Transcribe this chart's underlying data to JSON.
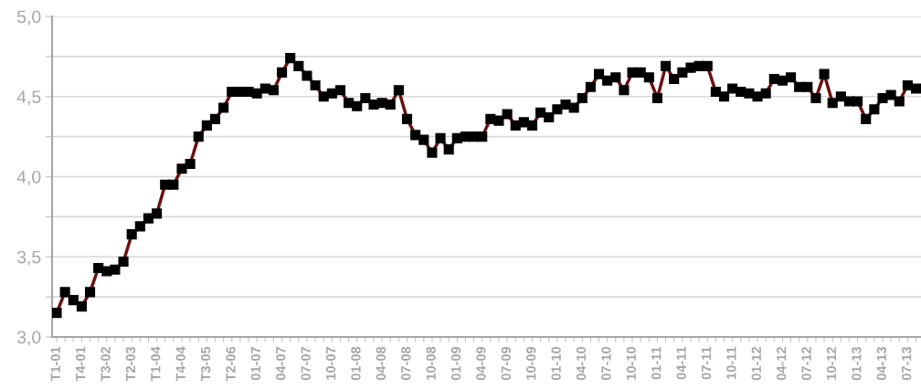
{
  "chart_data": {
    "type": "line",
    "categories": [
      "T1-01",
      null,
      null,
      "T4-01",
      null,
      null,
      "T3-02",
      null,
      null,
      "T2-03",
      null,
      null,
      "T1-04",
      null,
      null,
      "T4-04",
      null,
      null,
      "T3-05",
      null,
      null,
      "T2-06",
      null,
      null,
      "01-07",
      null,
      null,
      "04-07",
      null,
      null,
      "07-07",
      null,
      null,
      "10-07",
      null,
      null,
      "01-08",
      null,
      null,
      "04-08",
      null,
      null,
      "07-08",
      null,
      null,
      "10-08",
      null,
      null,
      "01-09",
      null,
      null,
      "04-09",
      null,
      null,
      "07-09",
      null,
      null,
      "10-09",
      null,
      null,
      "01-10",
      null,
      null,
      "04-10",
      null,
      null,
      "07-10",
      null,
      null,
      "10-10",
      null,
      null,
      "01-11",
      null,
      null,
      "04-11",
      null,
      null,
      "07-11",
      null,
      null,
      "10-11",
      null,
      null,
      "01-12",
      null,
      null,
      "04-12",
      null,
      null,
      "07-12",
      null,
      null,
      "10-12",
      null,
      null,
      "01-13",
      null,
      null,
      "04-13",
      null,
      null,
      "07-13",
      null
    ],
    "series": [
      {
        "color": "#6b1010",
        "values": [
          3.15,
          3.28,
          3.23,
          3.19,
          3.28,
          3.43,
          3.41,
          3.42,
          3.47,
          3.64,
          3.69,
          3.74,
          3.77,
          3.95,
          3.95,
          4.05,
          4.08,
          4.25,
          4.32,
          4.36,
          4.43,
          4.53,
          4.53,
          4.53,
          4.52,
          4.55,
          4.54,
          4.65,
          4.74,
          4.69,
          4.63,
          4.57,
          4.5,
          4.52,
          4.54,
          4.46,
          4.44,
          4.49,
          4.45,
          4.46,
          4.45,
          4.54,
          4.36,
          4.26,
          4.23,
          4.15,
          4.24,
          4.17,
          4.24,
          4.25,
          4.25,
          4.25,
          4.36,
          4.35,
          4.39,
          4.32,
          4.34,
          4.32,
          4.4,
          4.37,
          4.42,
          4.45,
          4.43,
          4.49,
          4.56,
          4.64,
          4.6,
          4.62,
          4.54,
          4.65,
          4.65,
          4.62,
          4.49,
          4.69,
          4.61,
          4.65,
          4.68,
          4.69,
          4.69,
          4.53,
          4.5,
          4.55,
          4.53,
          4.52,
          4.5,
          4.52,
          4.61,
          4.6,
          4.62,
          4.56,
          4.56,
          4.49,
          4.64,
          4.46,
          4.5,
          4.47,
          4.47,
          4.36,
          4.42,
          4.49,
          4.51,
          4.47,
          4.57,
          4.55
        ]
      }
    ],
    "ylim": [
      3.0,
      5.0
    ],
    "yticks": [
      {
        "value": 3.0,
        "label": "3,0"
      },
      {
        "value": 3.25,
        "label": null
      },
      {
        "value": 3.5,
        "label": "3,5"
      },
      {
        "value": 3.75,
        "label": null
      },
      {
        "value": 4.0,
        "label": "4,0"
      },
      {
        "value": 4.25,
        "label": null
      },
      {
        "value": 4.5,
        "label": "4,5"
      },
      {
        "value": 4.75,
        "label": null
      },
      {
        "value": 5.0,
        "label": "5,0"
      }
    ],
    "grid": "y",
    "legend": false,
    "marker": "square",
    "line_style": "solid"
  }
}
